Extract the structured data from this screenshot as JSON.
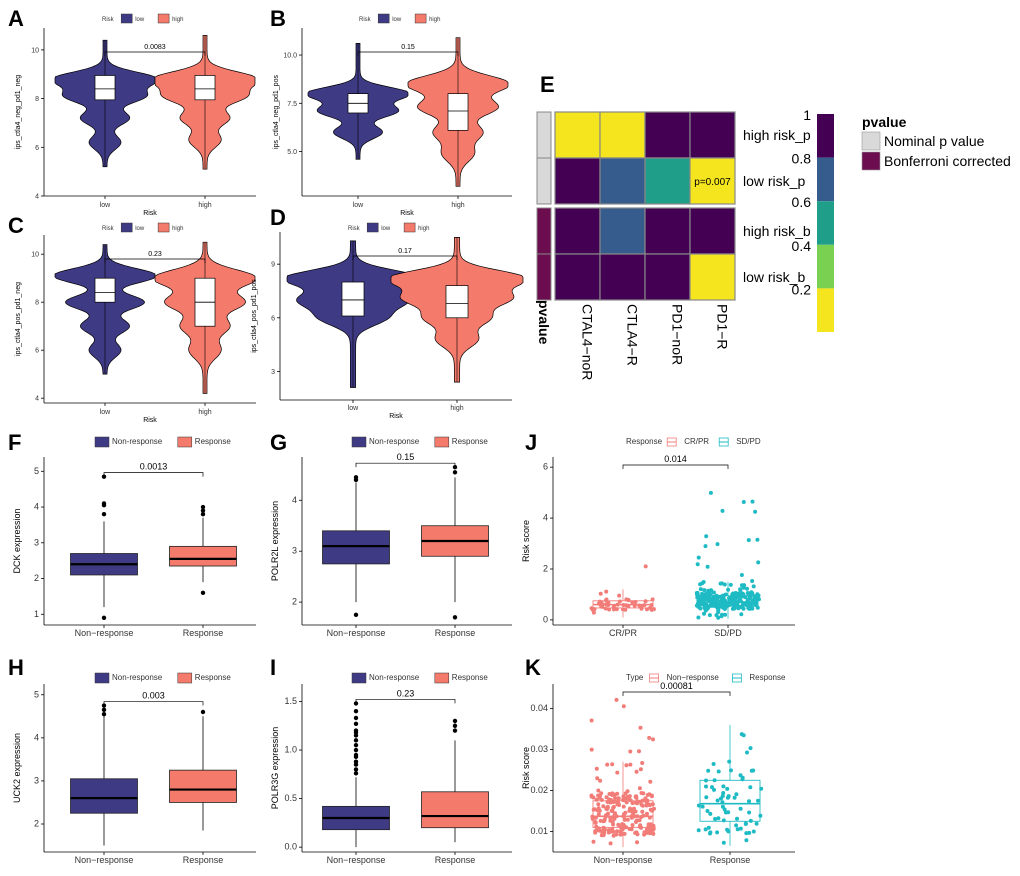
{
  "colors": {
    "low": "#3F3A84",
    "high": "#F47A6C",
    "cr": "#F27C78",
    "sd": "#1FBBC4",
    "nominal": "#D9D9D9",
    "bonferroni": "#6B0D4F",
    "viridis": [
      "#F4E51E",
      "#7AD151",
      "#1F9E89",
      "#365C8D",
      "#440154"
    ]
  },
  "chart_data": [
    {
      "panel": "A",
      "type": "violin",
      "legend_title": "Risk",
      "legend": [
        "low",
        "high"
      ],
      "ylabel": "ips_ctla4_neg_pd1_neg",
      "xlabel": "Risk",
      "categories": [
        "low",
        "high"
      ],
      "yticks": [
        4,
        6,
        8,
        10
      ],
      "ylim": [
        4,
        10.9
      ],
      "boxes": [
        {
          "q1": 7.95,
          "median": 8.4,
          "q3": 8.95,
          "wmin": 5.2,
          "wmax": 10.4,
          "bulges": [
            8.8,
            8.1,
            7.2,
            6.2
          ]
        },
        {
          "q1": 7.95,
          "median": 8.4,
          "q3": 8.95,
          "wmin": 5.1,
          "wmax": 10.6,
          "bulges": [
            8.8,
            8.1,
            7.2,
            6.3
          ]
        }
      ],
      "pvalue": "0.0083"
    },
    {
      "panel": "B",
      "type": "violin",
      "legend_title": "Risk",
      "legend": [
        "low",
        "high"
      ],
      "ylabel": "ips_ctla4_neg_pd1_pos",
      "xlabel": "Risk",
      "categories": [
        "low",
        "high"
      ],
      "yticks": [
        5.0,
        7.5,
        10.0
      ],
      "ytick_labels": [
        "5.0",
        "7.5",
        "10.0"
      ],
      "ylim": [
        2.7,
        11.4
      ],
      "boxes": [
        {
          "q1": 7.0,
          "median": 7.5,
          "q3": 8.0,
          "wmin": 4.6,
          "wmax": 10.6,
          "bulges": [
            8.0,
            7.1,
            6.0
          ]
        },
        {
          "q1": 6.1,
          "median": 7.1,
          "q3": 8.0,
          "wmin": 3.2,
          "wmax": 10.9,
          "bulges": [
            8.5,
            7.3,
            6.0,
            4.9
          ]
        }
      ],
      "pvalue": "0.15"
    },
    {
      "panel": "C",
      "type": "violin",
      "legend_title": "Risk",
      "legend": [
        "low",
        "high"
      ],
      "ylabel": "ips_ctla4_pos_pd1_neg",
      "xlabel": "Risk",
      "categories": [
        "low",
        "high"
      ],
      "yticks": [
        4,
        6,
        8,
        10
      ],
      "ylim": [
        3.8,
        10.8
      ],
      "boxes": [
        {
          "q1": 8.0,
          "median": 8.4,
          "q3": 9.0,
          "wmin": 5.0,
          "wmax": 10.4,
          "bulges": [
            9.1,
            8.0,
            7.0,
            6.0
          ]
        },
        {
          "q1": 7.0,
          "median": 8.0,
          "q3": 9.0,
          "wmin": 4.2,
          "wmax": 10.5,
          "bulges": [
            9.0,
            8.0,
            7.0,
            6.0
          ]
        }
      ],
      "pvalue": "0.23"
    },
    {
      "panel": "D",
      "type": "violin",
      "legend_title": "Risk",
      "legend": [
        "low",
        "high"
      ],
      "ylabel": "ips_ctla4_pos_pd1_pos",
      "xlabel": "Risk",
      "categories": [
        "low",
        "high"
      ],
      "yticks": [
        3,
        6,
        9
      ],
      "ylim": [
        1.4,
        10.8
      ],
      "boxes": [
        {
          "q1": 6.1,
          "median": 7.0,
          "q3": 8.0,
          "wmin": 2.1,
          "wmax": 10.3,
          "bulges": [
            8.2,
            7.0,
            6.0
          ]
        },
        {
          "q1": 6.0,
          "median": 6.8,
          "q3": 7.8,
          "wmin": 2.4,
          "wmax": 10.5,
          "bulges": [
            8.2,
            7.1,
            6.0,
            4.8
          ]
        }
      ],
      "pvalue": "0.17"
    },
    {
      "panel": "F",
      "type": "box",
      "legend": [
        "Non-response",
        "Response"
      ],
      "ylabel": "DCK expression",
      "xlabel": "",
      "categories": [
        "Non−response",
        "Response"
      ],
      "yticks": [
        1,
        2,
        3,
        4,
        5
      ],
      "ylim": [
        0.7,
        5.4
      ],
      "boxes": [
        {
          "q1": 2.1,
          "median": 2.4,
          "q3": 2.7,
          "wmin": 1.2,
          "wmax": 3.6,
          "outliers": [
            0.9,
            3.8,
            4.05,
            4.1,
            4.85
          ]
        },
        {
          "q1": 2.35,
          "median": 2.55,
          "q3": 2.9,
          "wmin": 1.9,
          "wmax": 3.7,
          "outliers": [
            1.6,
            3.8,
            3.9,
            4.0
          ]
        }
      ],
      "pvalue": "0.0013"
    },
    {
      "panel": "G",
      "type": "box",
      "legend": [
        "Non-response",
        "Response"
      ],
      "ylabel": "POLR2L expression",
      "xlabel": "",
      "categories": [
        "Non−response",
        "Response"
      ],
      "yticks": [
        2,
        3,
        4
      ],
      "ylim": [
        1.55,
        4.85
      ],
      "boxes": [
        {
          "q1": 2.75,
          "median": 3.1,
          "q3": 3.4,
          "wmin": 2.0,
          "wmax": 4.35,
          "outliers": [
            1.75,
            4.4,
            4.45
          ]
        },
        {
          "q1": 2.9,
          "median": 3.2,
          "q3": 3.5,
          "wmin": 2.0,
          "wmax": 4.45,
          "outliers": [
            1.7,
            4.55,
            4.65
          ]
        }
      ],
      "pvalue": "0.15"
    },
    {
      "panel": "H",
      "type": "box",
      "legend": [
        "Non-response",
        "Response"
      ],
      "ylabel": "UCK2 expression",
      "xlabel": "",
      "categories": [
        "Non−response",
        "Response"
      ],
      "yticks": [
        2,
        3,
        4,
        5
      ],
      "ylim": [
        1.35,
        5.25
      ],
      "boxes": [
        {
          "q1": 2.25,
          "median": 2.6,
          "q3": 3.05,
          "wmin": 1.5,
          "wmax": 4.5,
          "outliers": [
            4.55,
            4.65,
            4.75
          ]
        },
        {
          "q1": 2.5,
          "median": 2.8,
          "q3": 3.25,
          "wmin": 1.85,
          "wmax": 4.5,
          "outliers": [
            4.6
          ]
        }
      ],
      "pvalue": "0.003"
    },
    {
      "panel": "I",
      "type": "box",
      "legend": [
        "Non-response",
        "Response"
      ],
      "ylabel": "POLR3G expression",
      "xlabel": "",
      "categories": [
        "Non−response",
        "Response"
      ],
      "yticks": [
        0.0,
        0.5,
        1.0,
        1.5
      ],
      "ytick_labels": [
        "0.0",
        "0.5",
        "1.0",
        "1.5"
      ],
      "ylim": [
        -0.05,
        1.68
      ],
      "boxes": [
        {
          "q1": 0.18,
          "median": 0.3,
          "q3": 0.42,
          "wmin": 0.0,
          "wmax": 0.72,
          "outliers": [
            0.76,
            0.8,
            0.85,
            0.88,
            0.93,
            0.95,
            1.0,
            1.05,
            1.1,
            1.15,
            1.18,
            1.2,
            1.27,
            1.33,
            1.4,
            1.48
          ]
        },
        {
          "q1": 0.2,
          "median": 0.32,
          "q3": 0.57,
          "wmin": 0.05,
          "wmax": 1.1,
          "outliers": [
            1.2,
            1.25,
            1.3
          ]
        }
      ],
      "pvalue": "0.23"
    },
    {
      "panel": "J",
      "type": "box_jitter",
      "legend_title": "Response",
      "legend": [
        "CR/PR",
        "SD/PD"
      ],
      "ylabel": "Risk score",
      "xlabel": "",
      "categories": [
        "CR/PR",
        "SD/PD"
      ],
      "yticks": [
        0,
        2,
        4,
        6
      ],
      "ylim": [
        -0.2,
        6.4
      ],
      "boxes": [
        {
          "q1": 0.47,
          "median": 0.6,
          "q3": 0.75,
          "wmin": 0.1,
          "wmax": 1.2,
          "n": 50,
          "spread": 2.3
        },
        {
          "q1": 0.55,
          "median": 0.7,
          "q3": 0.95,
          "wmin": 0.05,
          "wmax": 1.5,
          "n": 260,
          "spread": 5.9
        }
      ],
      "pvalue": "0.014"
    },
    {
      "panel": "K",
      "type": "box_jitter",
      "legend_title": "Type",
      "legend": [
        "Non−response",
        "Response"
      ],
      "ylabel": "Risk score",
      "xlabel": "",
      "categories": [
        "Non−response",
        "Response"
      ],
      "yticks": [
        0.01,
        0.02,
        0.03,
        0.04
      ],
      "ytick_labels": [
        "0.01",
        "0.02",
        "0.03",
        "0.04"
      ],
      "ylim": [
        0.005,
        0.046
      ],
      "boxes": [
        {
          "q1": 0.011,
          "median": 0.0137,
          "q3": 0.0175,
          "wmin": 0.0062,
          "wmax": 0.027,
          "n": 230,
          "spread": 0.0435,
          "low": 0.0055
        },
        {
          "q1": 0.0125,
          "median": 0.0168,
          "q3": 0.0225,
          "wmin": 0.0065,
          "wmax": 0.036,
          "n": 70,
          "spread": 0.0435,
          "low": 0.006
        }
      ],
      "pvalue": "0.00081"
    }
  ],
  "heatmap": {
    "panel": "E",
    "type": "heatmap",
    "rows": [
      "high risk_p",
      "low risk_p",
      "high risk_b",
      "low risk_b"
    ],
    "cols": [
      "CTAL4−noR",
      "CTLA4−R",
      "PD1−noR",
      "PD1−R"
    ],
    "values": [
      [
        0.1,
        0.1,
        1.0,
        1.0
      ],
      [
        1.0,
        0.7,
        0.5,
        0.007
      ],
      [
        1.0,
        0.7,
        1.0,
        1.0
      ],
      [
        1.0,
        1.0,
        1.0,
        0.1
      ]
    ],
    "annotation": "p=0.007",
    "row_groups": [
      "Nominal p value",
      "Nominal p value",
      "Bonferroni corrected",
      "Bonferroni corrected"
    ],
    "side_label": "pvalue",
    "legend_title": "pvalue",
    "legend_items": [
      "Nominal p value",
      "Bonferroni corrected"
    ],
    "colorbar_ticks": [
      "1",
      "0.8",
      "0.6",
      "0.4",
      "0.2"
    ]
  }
}
